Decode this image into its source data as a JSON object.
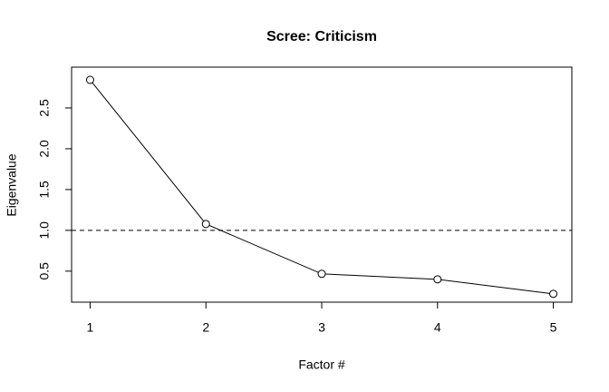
{
  "chart_data": {
    "type": "line",
    "title": "Scree: Criticism",
    "xlabel": "Factor #",
    "ylabel": "Eigenvalue",
    "x": [
      1,
      2,
      3,
      4,
      5
    ],
    "series": [
      {
        "color": "#000000",
        "values": [
          2.844,
          1.078,
          0.467,
          0.4,
          0.222
        ]
      }
    ],
    "xlim": [
      0.84,
      5.16
    ],
    "xticks": [
      1,
      2,
      3,
      4,
      5
    ],
    "ylim": [
      0.12,
      3.0
    ],
    "yticks": [
      0.5,
      1.0,
      1.5,
      2.0,
      2.5
    ],
    "hline": 1.0
  }
}
